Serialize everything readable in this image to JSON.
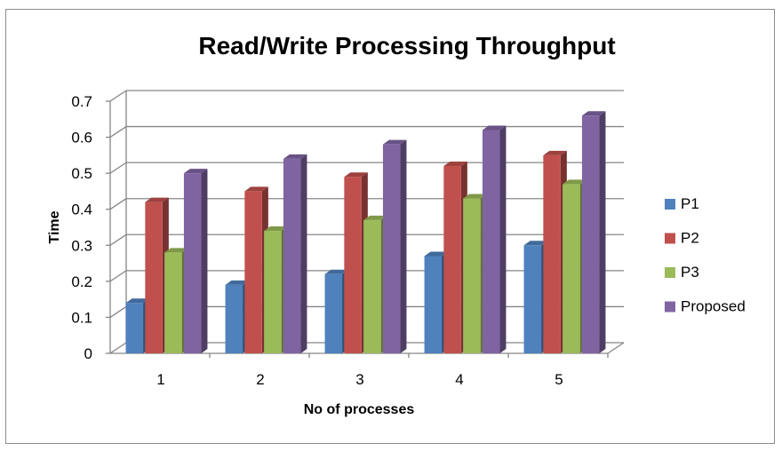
{
  "chart_data": {
    "type": "bar",
    "title": "Read/Write Processing Throughput",
    "xlabel": "No of processes",
    "ylabel": "Time",
    "categories": [
      "1",
      "2",
      "3",
      "4",
      "5"
    ],
    "series": [
      {
        "name": "P1",
        "values": [
          0.14,
          0.19,
          0.22,
          0.27,
          0.3
        ],
        "color": "#4f81bd"
      },
      {
        "name": "P2",
        "values": [
          0.42,
          0.45,
          0.49,
          0.52,
          0.55
        ],
        "color": "#c0504d"
      },
      {
        "name": "P3",
        "values": [
          0.28,
          0.34,
          0.37,
          0.43,
          0.47
        ],
        "color": "#9bbb59"
      },
      {
        "name": "Proposed",
        "values": [
          0.5,
          0.54,
          0.58,
          0.62,
          0.66
        ],
        "color": "#8064a2"
      }
    ],
    "ylim": [
      0,
      0.7
    ],
    "yticks": [
      "0",
      "0.1",
      "0.2",
      "0.3",
      "0.4",
      "0.5",
      "0.6",
      "0.7"
    ],
    "grid": true,
    "style": "3d",
    "legend_position": "right"
  }
}
